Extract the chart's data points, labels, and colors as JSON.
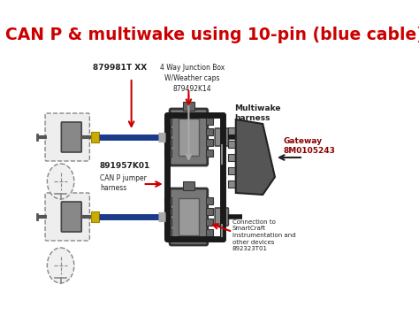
{
  "title": "CAN P & multiwake using 10-pin (blue cable)",
  "title_color": "#cc0000",
  "title_fontsize": 13.5,
  "bg_color": "#ffffff",
  "diagram": {
    "junction_box_label": "4 Way Junction Box\nW/Weather caps\n879492K14",
    "part1_label": "879981T XX",
    "part2_label": "891957K01",
    "part3_label": "CAN P jumper\nharness",
    "part4_label": "Multiwake\nharness",
    "part5_label": "Gateway\n8M0105243",
    "part6_label": "Connection to\nSmartCraft\nInstrumentation and\nother devices\n892323T01",
    "connector_color": "#555555",
    "cable_blue": "#1a3a8a",
    "cable_black": "#1a1a1a",
    "arrow_red": "#cc0000",
    "label_color": "#222222",
    "gateway_color": "#8b0000",
    "gray_arrow": "#aaaaaa"
  }
}
